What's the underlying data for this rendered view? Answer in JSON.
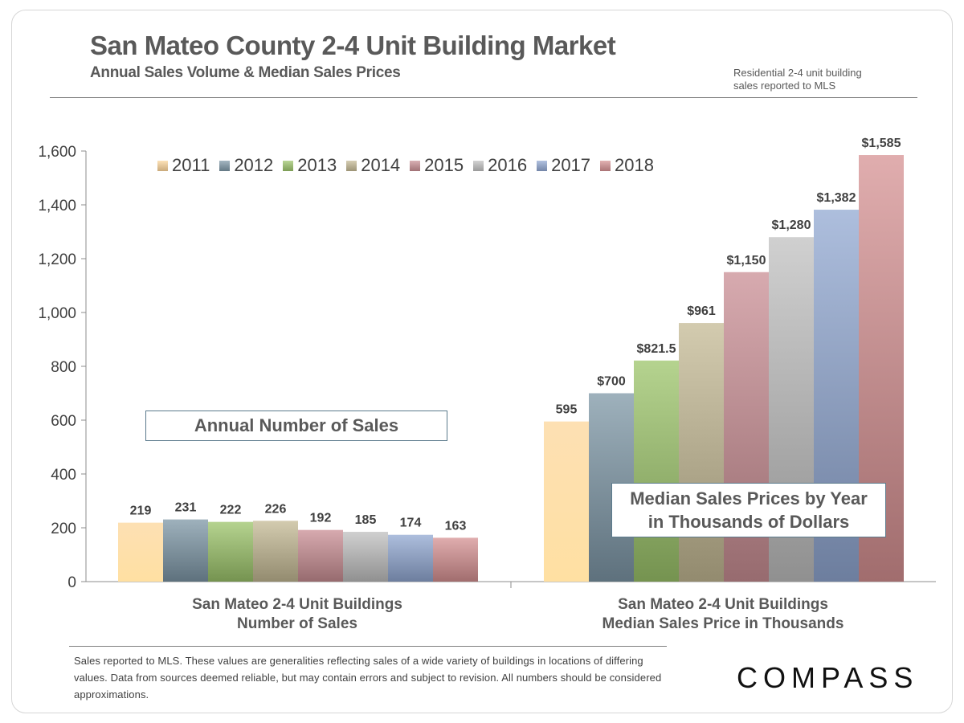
{
  "header": {
    "title": "San Mateo County 2-4 Unit Building Market",
    "subtitle": "Annual Sales Volume & Median Sales Prices",
    "note_line1": "Residential 2-4 unit building",
    "note_line2": "sales reported to MLS"
  },
  "annotations": {
    "box_sales": "Annual Number of Sales",
    "box_prices_line1": "Median Sales Prices by Year",
    "box_prices_line2": "in Thousands of Dollars"
  },
  "footer": {
    "footnote": "Sales reported to MLS. These values are generalities reflecting sales of a wide variety of buildings in locations of differing values. Data from sources deemed reliable, but may contain errors and subject to revision. All numbers should be considered approximations.",
    "logo": "COMPASS"
  },
  "chart_data": {
    "type": "bar",
    "categories": [
      {
        "line1": "San Mateo 2-4 Unit Buildings",
        "line2": "Number of Sales"
      },
      {
        "line1": "San Mateo 2-4 Unit Buildings",
        "line2": "Median Sales Price in Thousands"
      }
    ],
    "series": [
      {
        "name": "2011",
        "color": "#fcd59a",
        "values": [
          219,
          595
        ],
        "labels": [
          "219",
          "595"
        ]
      },
      {
        "name": "2012",
        "color": "#7d97a6",
        "values": [
          231,
          700
        ],
        "labels": [
          "231",
          "$700"
        ]
      },
      {
        "name": "2013",
        "color": "#9cc46a",
        "values": [
          222,
          821.5
        ],
        "labels": [
          "222",
          "$821.5"
        ]
      },
      {
        "name": "2014",
        "color": "#c4b994",
        "values": [
          226,
          961
        ],
        "labels": [
          "226",
          "$961"
        ]
      },
      {
        "name": "2015",
        "color": "#c98e94",
        "values": [
          192,
          1150
        ],
        "labels": [
          "192",
          "$1,150"
        ]
      },
      {
        "name": "2016",
        "color": "#c0c0c0",
        "values": [
          185,
          1280
        ],
        "labels": [
          "185",
          "$1,280"
        ]
      },
      {
        "name": "2017",
        "color": "#91a8d2",
        "values": [
          174,
          1382
        ],
        "labels": [
          "174",
          "$1,382"
        ]
      },
      {
        "name": "2018",
        "color": "#d69193",
        "values": [
          163,
          1585
        ],
        "labels": [
          "163",
          "$1,585"
        ]
      }
    ],
    "ylim": [
      0,
      1600
    ],
    "yticks": [
      "0",
      "200",
      "400",
      "600",
      "800",
      "1,000",
      "1,200",
      "1,400",
      "1,600"
    ],
    "legend_position": "top",
    "grid": false
  }
}
